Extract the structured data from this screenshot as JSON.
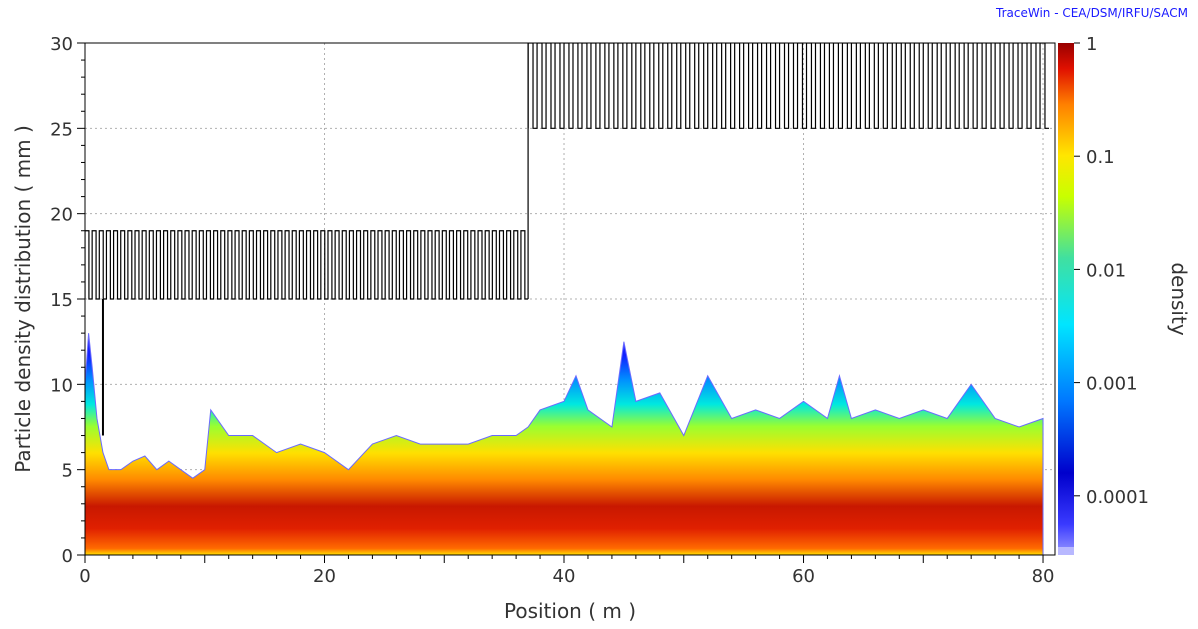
{
  "credit": "TraceWin - CEA/DSM/IRFU/SACM",
  "chart_data": {
    "type": "heatmap",
    "xlabel": "Position ( m )",
    "ylabel": "Particle density distribution ( mm )",
    "xlim": [
      0,
      81
    ],
    "ylim": [
      0,
      30
    ],
    "x_ticks": [
      0,
      20,
      40,
      60,
      80
    ],
    "y_ticks": [
      0,
      5,
      10,
      15,
      20,
      25,
      30
    ],
    "grid": true,
    "colorbar": {
      "label": "density",
      "scale": "log",
      "range": [
        3e-05,
        1
      ],
      "ticks": [
        {
          "value": 1,
          "label": "1"
        },
        {
          "value": 0.1,
          "label": "0.1"
        },
        {
          "value": 0.01,
          "label": "0.01"
        },
        {
          "value": 0.001,
          "label": "0.001"
        },
        {
          "value": 0.0001,
          "label": "0.0001"
        }
      ]
    },
    "beam_envelope_edge_mm": {
      "x": [
        0,
        0.3,
        0.6,
        1,
        1.5,
        2,
        3,
        4,
        5,
        6,
        7,
        8,
        9,
        10,
        10.5,
        12,
        14,
        16,
        18,
        20,
        22,
        24,
        26,
        28,
        30,
        32,
        34,
        36,
        37,
        38,
        40,
        41,
        42,
        44,
        45,
        46,
        48,
        50,
        52,
        54,
        56,
        58,
        60,
        62,
        63,
        64,
        66,
        68,
        70,
        72,
        74,
        76,
        78,
        80
      ],
      "y": [
        10,
        13,
        11,
        8,
        6,
        5,
        5,
        5.5,
        5.8,
        5,
        5.5,
        5,
        4.5,
        5,
        8.5,
        7,
        7,
        6,
        6.5,
        6,
        5,
        6.5,
        7,
        6.5,
        6.5,
        6.5,
        7,
        7,
        7.5,
        8.5,
        9,
        10.5,
        8.5,
        7.5,
        12.5,
        9,
        9.5,
        7,
        10.5,
        8,
        8.5,
        8,
        9,
        8,
        10.5,
        8,
        8.5,
        8,
        8.5,
        8,
        10,
        8,
        7.5,
        8
      ]
    },
    "aperture_upper_mm": [
      {
        "x_range": [
          0,
          37
        ],
        "value": 19,
        "lower": 15
      },
      {
        "x_range": [
          37,
          80.5
        ],
        "value": 30,
        "lower": 25
      }
    ]
  }
}
